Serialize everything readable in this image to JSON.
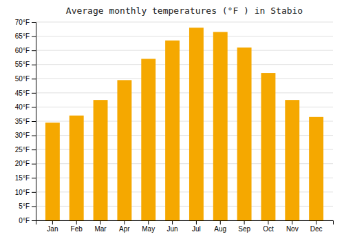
{
  "chart_data": {
    "type": "bar",
    "title": "Average monthly temperatures (°F ) in Stabio",
    "categories": [
      "Jan",
      "Feb",
      "Mar",
      "Apr",
      "May",
      "Jun",
      "Jul",
      "Aug",
      "Sep",
      "Oct",
      "Nov",
      "Dec"
    ],
    "values": [
      34.5,
      37.0,
      42.5,
      49.5,
      57.0,
      63.5,
      68.0,
      66.5,
      61.0,
      52.0,
      42.5,
      36.5
    ],
    "color": "#F5A800",
    "ylim": [
      0,
      70
    ],
    "yticks": [
      {
        "value": 0,
        "label": "0°F"
      },
      {
        "value": 5,
        "label": "5°F"
      },
      {
        "value": 10,
        "label": "10°F"
      },
      {
        "value": 15,
        "label": "15°F"
      },
      {
        "value": 20,
        "label": "20°F"
      },
      {
        "value": 25,
        "label": "25°F"
      },
      {
        "value": 30,
        "label": "30°F"
      },
      {
        "value": 35,
        "label": "35°F"
      },
      {
        "value": 40,
        "label": "40°F"
      },
      {
        "value": 45,
        "label": "45°F"
      },
      {
        "value": 50,
        "label": "50°F"
      },
      {
        "value": 55,
        "label": "55°F"
      },
      {
        "value": 60,
        "label": "60°F"
      },
      {
        "value": 65,
        "label": "65°F"
      },
      {
        "value": 70,
        "label": "70°F"
      }
    ],
    "grid": true
  }
}
